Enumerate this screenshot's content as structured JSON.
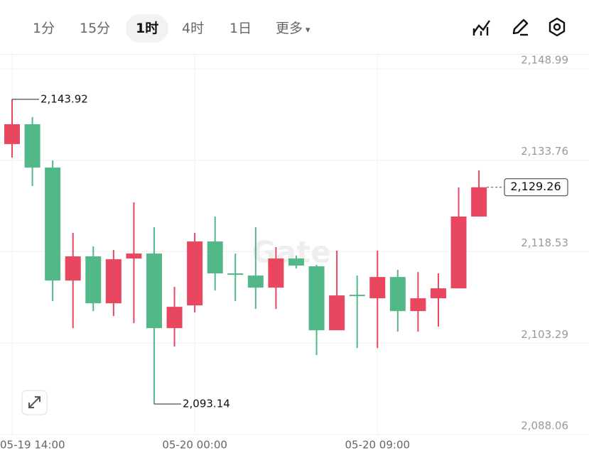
{
  "chart_data": {
    "type": "candlestick",
    "toolbar": {
      "intervals": [
        "1分",
        "15分",
        "1时",
        "4时",
        "1日"
      ],
      "active": "1时",
      "more": "更多"
    },
    "watermark": "Gate",
    "categories": [
      "05-19 14:00",
      null,
      null,
      null,
      null,
      null,
      null,
      null,
      null,
      "05-20 00:00",
      null,
      null,
      null,
      null,
      null,
      null,
      null,
      null,
      "05-20 09:00",
      null,
      null,
      null,
      null,
      null
    ],
    "open": [
      2136.46,
      2139.77,
      2132.55,
      2113.72,
      2117.75,
      2109.93,
      2117.39,
      2118.22,
      2105.79,
      2109.58,
      2120.23,
      2114.91,
      2114.55,
      2112.54,
      2117.39,
      2116.09,
      2105.43,
      2111.35,
      2110.76,
      2114.31,
      2108.63,
      2110.76,
      2112.42,
      2124.38
    ],
    "high": [
      2143.92,
      2140.96,
      2133.73,
      2121.66,
      2119.41,
      2118.81,
      2126.75,
      2122.6,
      2112.66,
      2121.66,
      2124.38,
      2118.22,
      2122.6,
      2119.29,
      2117.87,
      2116.33,
      2118.7,
      2114.55,
      2118.7,
      2115.5,
      2115.14,
      2114.91,
      2129.23,
      2132.08
    ],
    "low": [
      2134.21,
      2129.47,
      2110.29,
      2105.79,
      2108.63,
      2107.8,
      2106.62,
      2093.14,
      2102.71,
      2108.39,
      2112.06,
      2110.29,
      2108.99,
      2108.99,
      2115.73,
      2101.29,
      2105.43,
      2102.47,
      2102.47,
      2105.2,
      2105.2,
      2106.03,
      2112.42,
      2124.38
    ],
    "close": [
      2139.77,
      2132.55,
      2113.72,
      2117.75,
      2109.93,
      2117.27,
      2118.22,
      2105.79,
      2109.34,
      2120.23,
      2114.91,
      2114.67,
      2112.54,
      2117.39,
      2116.21,
      2105.43,
      2111.24,
      2111.12,
      2114.31,
      2108.63,
      2110.76,
      2112.42,
      2124.38,
      2129.26
    ],
    "up_color": "#e8475f",
    "down_color": "#52b887",
    "ylim": [
      2088.06,
      2151.59
    ],
    "yticks": [
      {
        "value": 2088.06,
        "label": "2,088.06"
      },
      {
        "value": 2103.29,
        "label": "2,103.29"
      },
      {
        "value": 2118.53,
        "label": "2,118.53"
      },
      {
        "value": 2133.76,
        "label": "2,133.76"
      },
      {
        "value": 2148.99,
        "label": "2,148.99"
      }
    ],
    "grid": true,
    "high_label": {
      "value": 2143.92,
      "label": "2,143.92"
    },
    "low_label": {
      "value": 2093.14,
      "label": "2,093.14"
    },
    "last_price": {
      "value": 2129.26,
      "label": "2,129.26"
    }
  }
}
